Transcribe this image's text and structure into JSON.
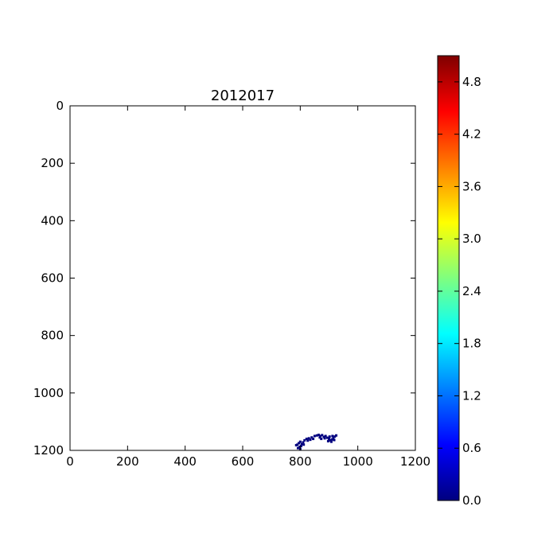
{
  "chart_data": {
    "type": "heatmap",
    "title": "2012017",
    "xlabel": "",
    "ylabel": "",
    "xlim": [
      0,
      1200
    ],
    "ylim": [
      1200,
      0
    ],
    "x_ticks": [
      "0",
      "200",
      "400",
      "600",
      "800",
      "1000",
      "1200"
    ],
    "y_ticks": [
      "0",
      "200",
      "400",
      "600",
      "800",
      "1000",
      "1200"
    ],
    "grid": false,
    "colormap": "jet",
    "background_color": "#ffffff",
    "data_color": "#00007f",
    "colorbar": {
      "range": [
        0.0,
        5.1
      ],
      "ticks": [
        "0.0",
        "0.6",
        "1.2",
        "1.8",
        "2.4",
        "3.0",
        "3.6",
        "4.2",
        "4.8"
      ],
      "colors": [
        "#00007f",
        "#0000ff",
        "#007fff",
        "#00ffff",
        "#7fff7f",
        "#ffff00",
        "#ff7f00",
        "#ff0000",
        "#7f0000"
      ]
    },
    "nonzero_region": [
      [
        790,
        1180
      ],
      [
        795,
        1175
      ],
      [
        800,
        1170
      ],
      [
        805,
        1178
      ],
      [
        798,
        1188
      ],
      [
        792,
        1192
      ],
      [
        803,
        1185
      ],
      [
        810,
        1172
      ],
      [
        815,
        1165
      ],
      [
        822,
        1160
      ],
      [
        830,
        1158
      ],
      [
        826,
        1166
      ],
      [
        835,
        1163
      ],
      [
        840,
        1155
      ],
      [
        850,
        1150
      ],
      [
        858,
        1148
      ],
      [
        864,
        1146
      ],
      [
        870,
        1150
      ],
      [
        876,
        1147
      ],
      [
        882,
        1153
      ],
      [
        888,
        1150
      ],
      [
        894,
        1156
      ],
      [
        900,
        1160
      ],
      [
        905,
        1165
      ],
      [
        910,
        1162
      ],
      [
        915,
        1158
      ],
      [
        920,
        1152
      ],
      [
        925,
        1148
      ],
      [
        897,
        1168
      ],
      [
        908,
        1170
      ],
      [
        912,
        1150
      ],
      [
        885,
        1158
      ],
      [
        918,
        1164
      ],
      [
        868,
        1155
      ],
      [
        845,
        1160
      ],
      [
        812,
        1180
      ],
      [
        786,
        1182
      ],
      [
        800,
        1195
      ],
      [
        902,
        1152
      ],
      [
        873,
        1160
      ]
    ]
  }
}
